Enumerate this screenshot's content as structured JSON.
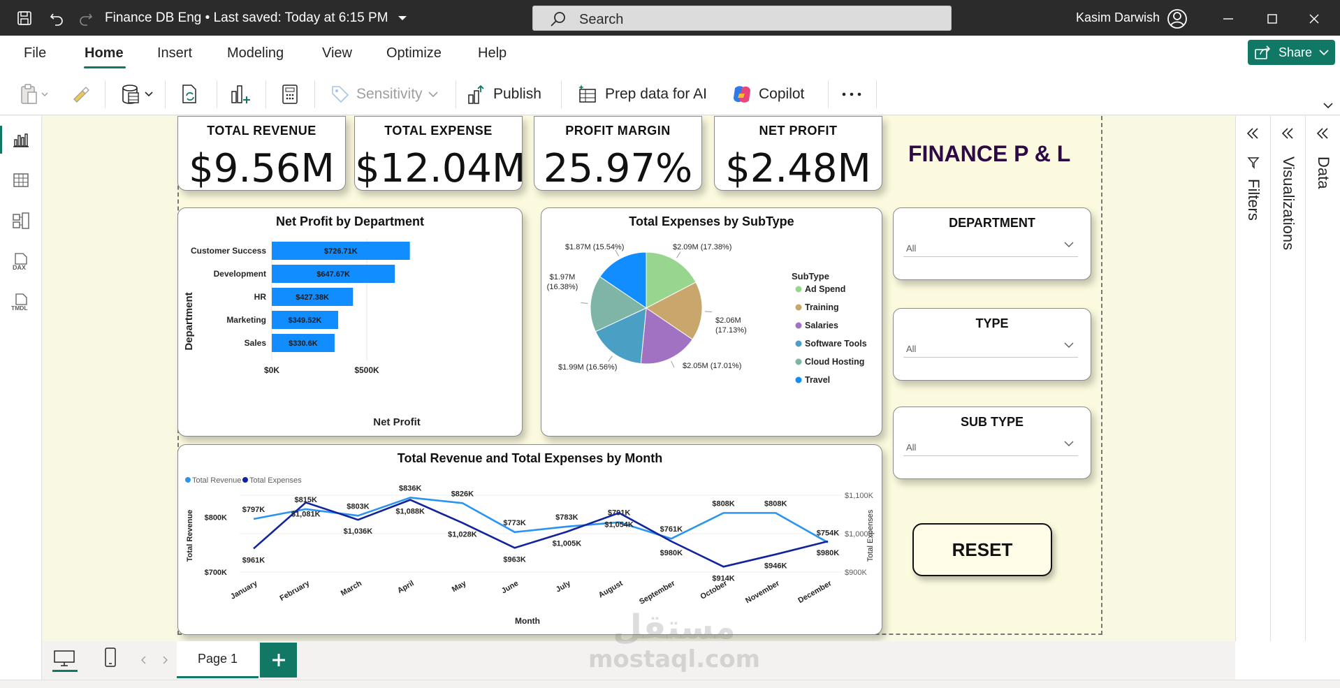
{
  "window": {
    "title": "Finance DB Eng • Last saved: Today at 6:15 PM",
    "search_placeholder": "Search",
    "user": "Kasim Darwish"
  },
  "menu": {
    "tabs": [
      "File",
      "Home",
      "Insert",
      "Modeling",
      "View",
      "Optimize",
      "Help"
    ],
    "active": "Home",
    "share_label": "Share"
  },
  "ribbon": {
    "sensitivity": "Sensitivity",
    "publish": "Publish",
    "prep": "Prep data for AI",
    "copilot": "Copilot"
  },
  "report": {
    "title": "FINANCE P & L",
    "kpis": [
      {
        "label": "TOTAL REVENUE",
        "value": "$9.56M"
      },
      {
        "label": "TOTAL EXPENSE",
        "value": "$12.04M"
      },
      {
        "label": "PROFIT MARGIN",
        "value": "25.97%"
      },
      {
        "label": "NET PROFIT",
        "value": "$2.48M"
      }
    ],
    "slicers": [
      {
        "title": "DEPARTMENT",
        "value": "All"
      },
      {
        "title": "TYPE",
        "value": "All"
      },
      {
        "title": "SUB TYPE",
        "value": "All"
      }
    ],
    "reset_label": "RESET"
  },
  "chart_data": [
    {
      "type": "bar",
      "orientation": "horizontal",
      "title": "Net Profit by Department",
      "xlabel": "Net Profit",
      "ylabel": "Department",
      "categories": [
        "Customer Success",
        "Development",
        "HR",
        "Marketing",
        "Sales"
      ],
      "values": [
        726.71,
        647.67,
        427.38,
        349.52,
        330.6
      ],
      "data_labels": [
        "$726.71K",
        "$647.67K",
        "$427.38K",
        "$349.52K",
        "$330.6K"
      ],
      "x_ticks": [
        "$0K",
        "$500K"
      ],
      "xlim": [
        0,
        1000
      ],
      "color": "#118dff"
    },
    {
      "type": "pie",
      "title": "Total Expenses by SubType",
      "legend_title": "SubType",
      "legend_placement": "right",
      "slices": [
        {
          "name": "Ad Spend",
          "value": 2.09,
          "label": "$2.09M (17.38%)",
          "color": "#98d690"
        },
        {
          "name": "Training",
          "value": 2.06,
          "label": "$2.06M (17.13%)",
          "color": "#c9a66b"
        },
        {
          "name": "Salaries",
          "value": 2.05,
          "label": "$2.05M (17.01%)",
          "color": "#a272c2"
        },
        {
          "name": "Software Tools",
          "value": 1.99,
          "label": "$1.99M (16.56%)",
          "color": "#4a9fc5"
        },
        {
          "name": "Cloud Hosting",
          "value": 1.97,
          "label": "$1.97M (16.38%)",
          "color": "#7fb5a6"
        },
        {
          "name": "Travel",
          "value": 1.87,
          "label": "$1.87M (15.54%)",
          "color": "#118dff"
        }
      ]
    },
    {
      "type": "line",
      "title": "Total Revenue and Total Expenses by Month",
      "xlabel": "Month",
      "ylabel": "Total Revenue",
      "y2label": "Total Expenses",
      "legend_placement": "top-left",
      "categories": [
        "January",
        "February",
        "March",
        "April",
        "May",
        "June",
        "July",
        "August",
        "September",
        "October",
        "November",
        "December"
      ],
      "series": [
        {
          "name": "Total Revenue",
          "axis": "left",
          "color": "#2b94f0",
          "values": [
            797,
            815,
            803,
            836,
            826,
            773,
            783,
            791,
            761,
            808,
            808,
            754
          ],
          "labels": [
            "$797K",
            "$815K",
            "$803K",
            "$836K",
            "$826K",
            "$773K",
            "$783K",
            "$791K",
            "$761K",
            "$808K",
            "$808K",
            "$754K"
          ]
        },
        {
          "name": "Total Expenses",
          "axis": "right",
          "color": "#12239e",
          "values": [
            961,
            1081,
            1036,
            1088,
            1028,
            963,
            1005,
            1054,
            980,
            914,
            946,
            980
          ],
          "labels": [
            "$961K",
            "$1,081K",
            "$1,036K",
            "$1,088K",
            "$1,028K",
            "$963K",
            "$1,005K",
            "$1,054K",
            "$980K",
            "$914K",
            "$946K",
            "$980K"
          ]
        }
      ],
      "y_ticks": [
        "$700K",
        "$800K"
      ],
      "ylim": [
        700,
        850
      ],
      "y2_ticks": [
        "$900K",
        "$1,000K",
        "$1,100K"
      ],
      "y2lim": [
        900,
        1100
      ]
    }
  ],
  "pages": {
    "tabs": [
      "Page 1"
    ]
  },
  "panes": {
    "filters": "Filters",
    "visualizations": "Visualizations",
    "data": "Data"
  },
  "watermark": {
    "arabic": "مستقل",
    "latin": "mostaql.com"
  }
}
